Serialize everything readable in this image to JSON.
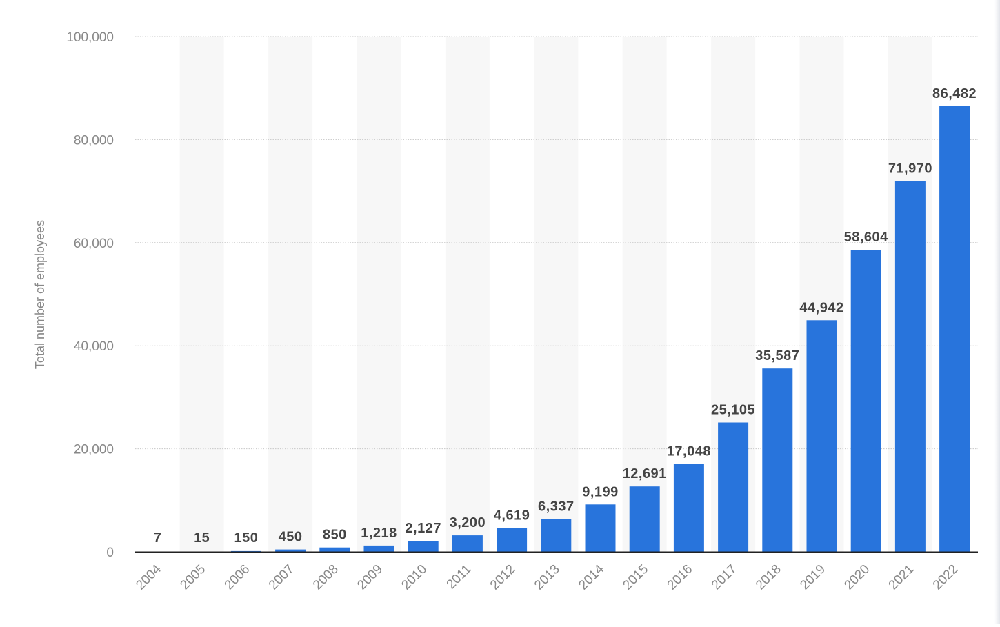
{
  "chart_data": {
    "type": "bar",
    "title": "",
    "xlabel": "",
    "ylabel": "Total number of employees",
    "categories": [
      "2004",
      "2005",
      "2006",
      "2007",
      "2008",
      "2009",
      "2010",
      "2011",
      "2012",
      "2013",
      "2014",
      "2015",
      "2016",
      "2017",
      "2018",
      "2019",
      "2020",
      "2021",
      "2022"
    ],
    "values": [
      7,
      15,
      150,
      450,
      850,
      1218,
      2127,
      3200,
      4619,
      6337,
      9199,
      12691,
      17048,
      25105,
      35587,
      44942,
      58604,
      71970,
      86482
    ],
    "value_labels": [
      "7",
      "15",
      "150",
      "450",
      "850",
      "1,218",
      "2,127",
      "3,200",
      "4,619",
      "6,337",
      "9,199",
      "12,691",
      "17,048",
      "25,105",
      "35,587",
      "44,942",
      "58,604",
      "71,970",
      "86,482"
    ],
    "ylim": [
      0,
      100000
    ],
    "yticks": [
      0,
      20000,
      40000,
      60000,
      80000,
      100000
    ],
    "ytick_labels": [
      "0",
      "20,000",
      "40,000",
      "60,000",
      "80,000",
      "100,000"
    ],
    "grid": true,
    "legend": "none",
    "colors": {
      "bar": "#2874dc",
      "band": "#f7f7f7",
      "grid": "#c8c8c8",
      "axis": "#222222",
      "tick_text": "#888888",
      "value_text": "#444444"
    }
  }
}
